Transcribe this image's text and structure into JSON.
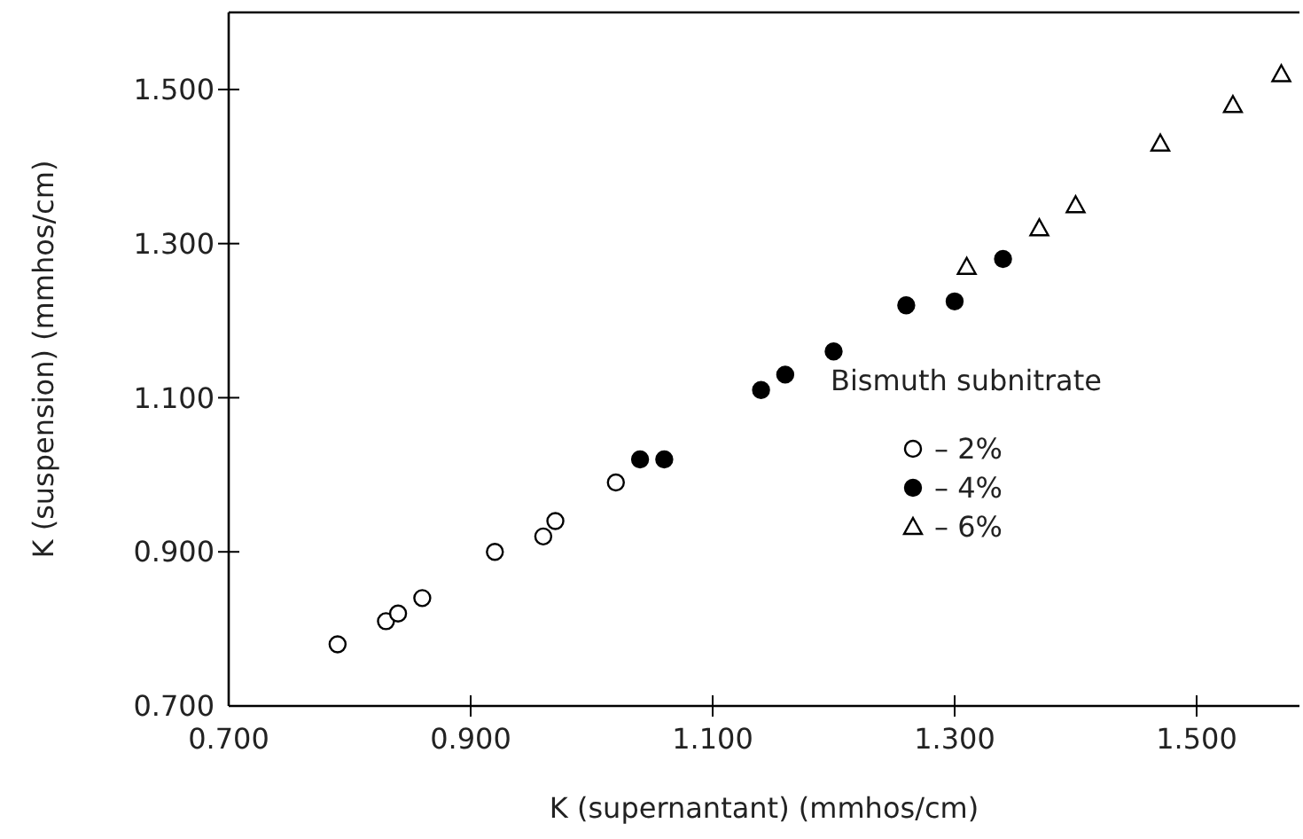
{
  "chart_data": {
    "type": "scatter",
    "xlabel": "K (supernantant) (mmhos/cm)",
    "ylabel": "K (suspension) (mmhos/cm)",
    "legend_title": "Bismuth subnitrate",
    "legend": "right",
    "xlim": [
      0.7,
      1.585
    ],
    "ylim": [
      0.7,
      1.6
    ],
    "xticks": [
      {
        "value": 0.7,
        "label": "0.700"
      },
      {
        "value": 0.9,
        "label": "0.900"
      },
      {
        "value": 1.1,
        "label": "1.100"
      },
      {
        "value": 1.3,
        "label": "1.300"
      },
      {
        "value": 1.5,
        "label": "1.500"
      }
    ],
    "yticks": [
      {
        "value": 0.7,
        "label": "0.700"
      },
      {
        "value": 0.9,
        "label": "0.900"
      },
      {
        "value": 1.1,
        "label": "1.100"
      },
      {
        "value": 1.3,
        "label": "1.300"
      },
      {
        "value": 1.5,
        "label": "1.500"
      }
    ],
    "series": [
      {
        "name": "– 2%",
        "color": "#ffffff",
        "marker": "circle",
        "x": [
          0.79,
          0.83,
          0.84,
          0.86,
          0.92,
          0.96,
          0.97,
          1.02
        ],
        "values": [
          0.78,
          0.81,
          0.82,
          0.84,
          0.9,
          0.92,
          0.94,
          0.99
        ]
      },
      {
        "name": "– 4%",
        "color": "#000000",
        "marker": "circle",
        "x": [
          1.04,
          1.06,
          1.14,
          1.16,
          1.2,
          1.26,
          1.3,
          1.34
        ],
        "values": [
          1.02,
          1.02,
          1.11,
          1.13,
          1.16,
          1.22,
          1.225,
          1.28
        ]
      },
      {
        "name": "– 6%",
        "color": "#ffffff",
        "marker": "triangle",
        "x": [
          1.31,
          1.37,
          1.4,
          1.47,
          1.53,
          1.57
        ],
        "values": [
          1.27,
          1.32,
          1.35,
          1.43,
          1.48,
          1.52
        ]
      }
    ]
  }
}
